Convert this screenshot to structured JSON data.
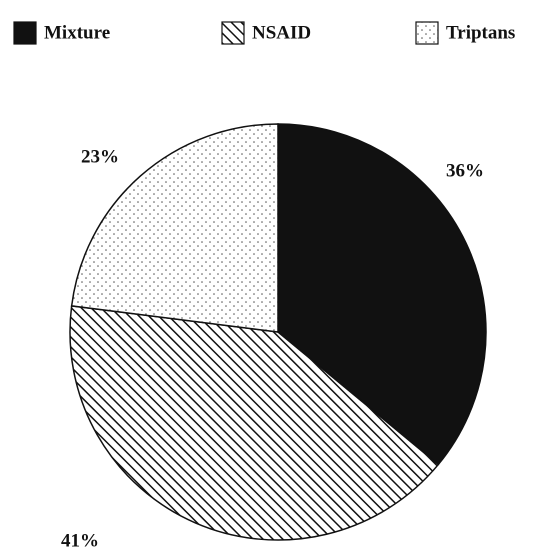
{
  "chart_data": {
    "type": "pie",
    "categories": [
      "Mixture",
      "NSAID",
      "Triptans"
    ],
    "values": [
      36,
      41,
      23
    ],
    "value_labels": [
      "36%",
      "41%",
      "23%"
    ],
    "fills": [
      "solid",
      "hatch",
      "dots"
    ],
    "color": "#111111",
    "legend": "top"
  }
}
